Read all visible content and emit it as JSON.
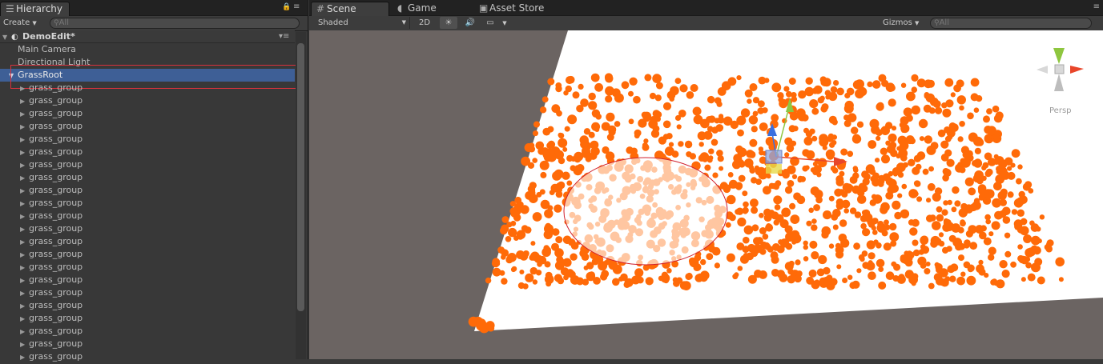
{
  "hierarchy": {
    "tab_label": "Hierarchy",
    "create_label": "Create",
    "search_placeholder": "All",
    "scene_name": "DemoEdit*",
    "items": [
      {
        "label": "Main Camera"
      },
      {
        "label": "Directional Light"
      },
      {
        "label": "GrassRoot"
      }
    ],
    "group_label": "grass_group",
    "group_count": 22
  },
  "scene": {
    "tabs": [
      {
        "label": "Scene"
      },
      {
        "label": "Game"
      },
      {
        "label": "Asset Store"
      }
    ],
    "shading_mode": "Shaded",
    "mode_2d_label": "2D",
    "gizmos_label": "Gizmos",
    "search_placeholder": "All",
    "persp_label": "Persp"
  },
  "colors": {
    "selection": "#3e5f96",
    "grass": "#ff6a08",
    "ground": "#ffffff",
    "background": "#6b6462",
    "brush": "#d0202c"
  }
}
